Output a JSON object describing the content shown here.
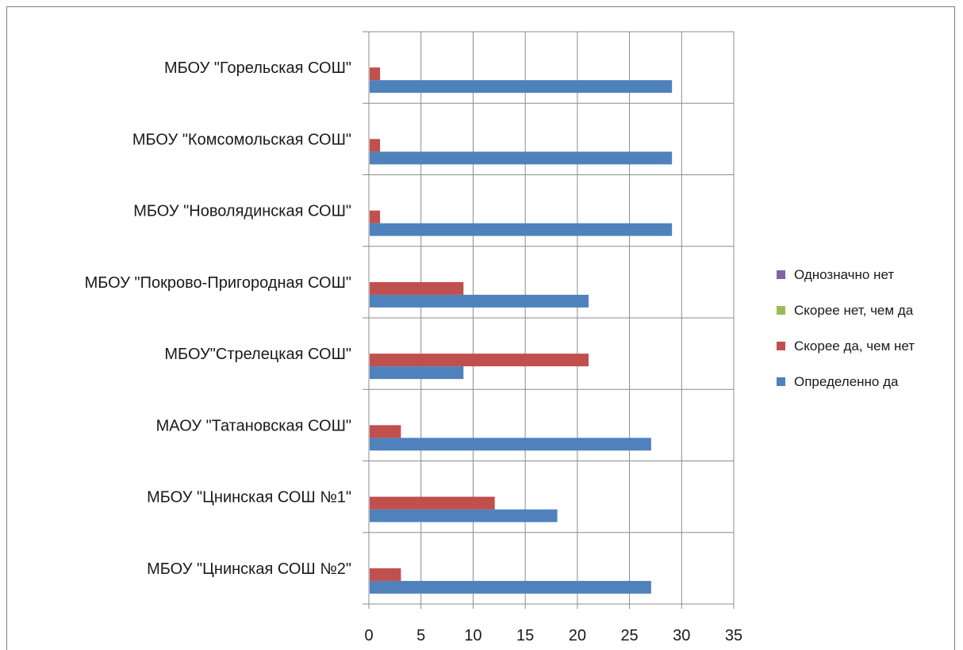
{
  "chart_data": {
    "type": "bar",
    "orientation": "horizontal",
    "categories": [
      "МБОУ \"Горельская СОШ\"",
      "МБОУ \"Комсомольская СОШ\"",
      "МБОУ \"Новолядинская  СОШ\"",
      "МБОУ \"Покрово-Пригородная  СОШ\"",
      "МБОУ\"Стрелецкая СОШ\"",
      "МАОУ \"Татановская  СОШ\"",
      "МБОУ \"Цнинская  СОШ №1\"",
      "МБОУ \"Цнинская  СОШ №2\""
    ],
    "series": [
      {
        "name": "Определенно  да",
        "color": "#4f81bd",
        "values": [
          29,
          29,
          29,
          21,
          9,
          27,
          18,
          27
        ]
      },
      {
        "name": "Скорее да, чем нет",
        "color": "#c0504d",
        "values": [
          1,
          1,
          1,
          9,
          21,
          3,
          12,
          3
        ]
      },
      {
        "name": "Скорее нет, чем да",
        "color": "#9bbb59",
        "values": [
          0,
          0,
          0,
          0,
          0,
          0,
          0,
          0
        ]
      },
      {
        "name": "Однозначно  нет",
        "color": "#8064a2",
        "values": [
          0,
          0,
          0,
          0,
          0,
          0,
          0,
          0
        ]
      }
    ],
    "xlim": [
      0,
      35
    ],
    "x_ticks": [
      "0",
      "5",
      "10",
      "15",
      "20",
      "25",
      "30",
      "35"
    ],
    "grid": true,
    "legend_position": "right",
    "legend_order": [
      "Однозначно  нет",
      "Скорее нет, чем да",
      "Скорее да, чем нет",
      "Определенно  да"
    ]
  }
}
